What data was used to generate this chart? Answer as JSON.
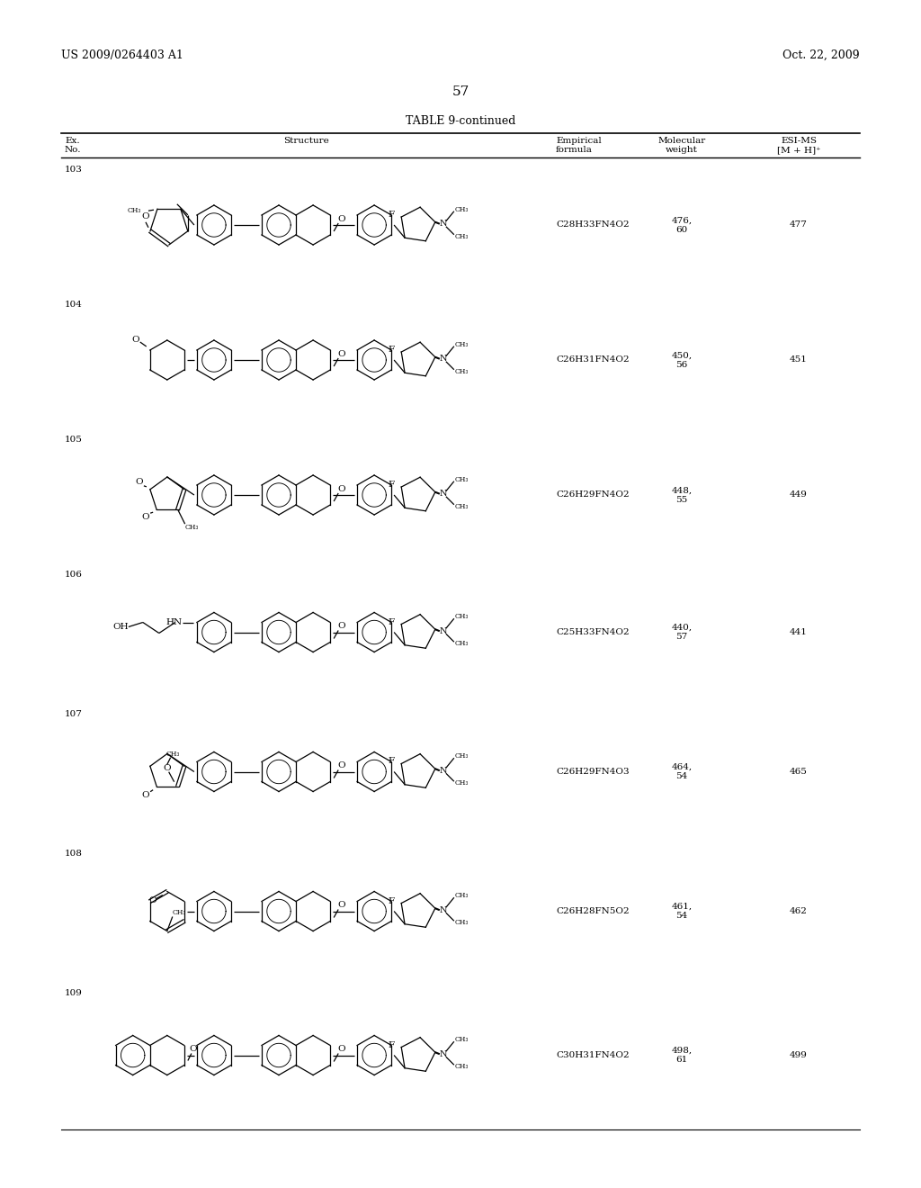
{
  "header_left": "US 2009/0264403 A1",
  "header_right": "Oct. 22, 2009",
  "page_number": "57",
  "table_title": "TABLE 9-continued",
  "rows": [
    {
      "ex_no": "103",
      "empirical": "C28H33FN4O2",
      "mol_weight": "476,\n60",
      "esi_ms": "477"
    },
    {
      "ex_no": "104",
      "empirical": "C26H31FN4O2",
      "mol_weight": "450,\n56",
      "esi_ms": "451"
    },
    {
      "ex_no": "105",
      "empirical": "C26H29FN4O2",
      "mol_weight": "448,\n55",
      "esi_ms": "449"
    },
    {
      "ex_no": "106",
      "empirical": "C25H33FN4O2",
      "mol_weight": "440,\n57",
      "esi_ms": "441"
    },
    {
      "ex_no": "107",
      "empirical": "C26H29FN4O3",
      "mol_weight": "464,\n54",
      "esi_ms": "465"
    },
    {
      "ex_no": "108",
      "empirical": "C26H28FN5O2",
      "mol_weight": "461,\n54",
      "esi_ms": "462"
    },
    {
      "ex_no": "109",
      "empirical": "C30H31FN4O2",
      "mol_weight": "498,\n61",
      "esi_ms": "499"
    }
  ]
}
